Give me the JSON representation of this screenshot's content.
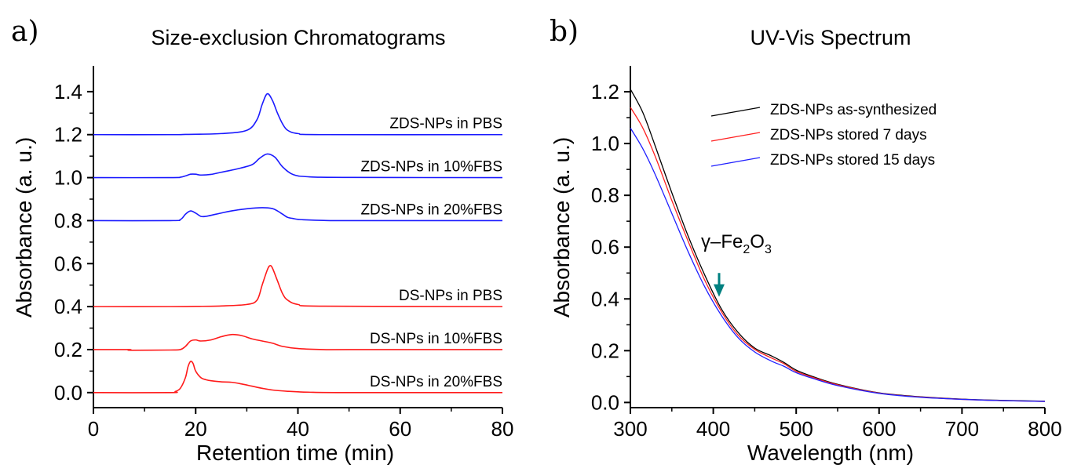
{
  "chart_data": [
    {
      "panel": "a)",
      "type": "line",
      "title": "Size-exclusion Chromatograms",
      "xlabel": "Retention time (min)",
      "ylabel": "Absorbance (a. u.)",
      "xlim": [
        0,
        80
      ],
      "ylim": [
        -0.07,
        1.52
      ],
      "xticks": [
        0,
        20,
        40,
        60,
        80
      ],
      "yticks": [
        0.0,
        0.2,
        0.4,
        0.6,
        0.8,
        1.0,
        1.2,
        1.4
      ],
      "ytick_labels": [
        "0.0",
        "0.2",
        "0.4",
        "0.6",
        "0.8",
        "1.0",
        "1.2",
        "1.4"
      ],
      "series": [
        {
          "name": "ZDS-NPs in PBS",
          "color": "#1a1aff",
          "x": [
            0,
            15,
            18,
            25,
            30,
            32,
            33,
            34,
            35,
            36,
            37,
            38,
            40,
            45,
            80
          ],
          "y": [
            1.2,
            1.2,
            1.201,
            1.205,
            1.22,
            1.27,
            1.34,
            1.39,
            1.36,
            1.3,
            1.25,
            1.22,
            1.205,
            1.2,
            1.2
          ]
        },
        {
          "name": "ZDS-NPs in 10%FBS",
          "color": "#1a1aff",
          "x": [
            0,
            15,
            17,
            18,
            19,
            20,
            21,
            23,
            25,
            28,
            31,
            32.5,
            34,
            35.5,
            37,
            39,
            42,
            50,
            80
          ],
          "y": [
            1.0,
            1.0,
            1.002,
            1.008,
            1.016,
            1.016,
            1.012,
            1.015,
            1.025,
            1.04,
            1.06,
            1.09,
            1.11,
            1.095,
            1.05,
            1.015,
            1.004,
            1.001,
            1.0
          ]
        },
        {
          "name": "ZDS-NPs in 20%FBS",
          "color": "#1a1aff",
          "x": [
            0,
            15,
            17,
            18,
            19,
            20,
            21,
            22,
            24,
            27,
            30,
            33,
            35,
            36,
            37,
            38,
            39,
            40,
            42,
            45,
            50,
            80
          ],
          "y": [
            0.8,
            0.8,
            0.805,
            0.83,
            0.845,
            0.835,
            0.82,
            0.82,
            0.83,
            0.845,
            0.855,
            0.86,
            0.856,
            0.845,
            0.83,
            0.815,
            0.81,
            0.806,
            0.803,
            0.801,
            0.8,
            0.8
          ]
        },
        {
          "name": "DS-NPs in PBS",
          "color": "#ff1a1a",
          "x": [
            0,
            15,
            20,
            25,
            30,
            32,
            33,
            34,
            34.5,
            35,
            36,
            37,
            38,
            40,
            45,
            80
          ],
          "y": [
            0.4,
            0.4,
            0.401,
            0.403,
            0.41,
            0.43,
            0.5,
            0.57,
            0.59,
            0.58,
            0.52,
            0.46,
            0.43,
            0.41,
            0.402,
            0.4
          ]
        },
        {
          "name": "DS-NPs in 10%FBS",
          "color": "#ff1a1a",
          "x": [
            0,
            7,
            7.2,
            15,
            17,
            18,
            19,
            20,
            21,
            23,
            25,
            27,
            29,
            31,
            33,
            35,
            37,
            40,
            45,
            50,
            80
          ],
          "y": [
            0.2,
            0.2,
            0.197,
            0.198,
            0.2,
            0.215,
            0.24,
            0.245,
            0.24,
            0.245,
            0.26,
            0.27,
            0.265,
            0.25,
            0.24,
            0.23,
            0.215,
            0.205,
            0.2,
            0.2,
            0.2
          ]
        },
        {
          "name": "DS-NPs in 20%FBS",
          "color": "#ff1a1a",
          "x": [
            0,
            15,
            16,
            17,
            18,
            18.5,
            19,
            19.5,
            20,
            21,
            22,
            23,
            25,
            27,
            29,
            31,
            33,
            35,
            38,
            42,
            50,
            80
          ],
          "y": [
            0.0,
            0.0,
            0.005,
            0.02,
            0.07,
            0.12,
            0.145,
            0.135,
            0.1,
            0.07,
            0.06,
            0.055,
            0.05,
            0.048,
            0.04,
            0.03,
            0.02,
            0.012,
            0.006,
            0.002,
            0.0,
            0.0
          ]
        }
      ],
      "annotations": [
        {
          "text": "ZDS-NPs in PBS",
          "series": 0
        },
        {
          "text": "ZDS-NPs in 10%FBS",
          "series": 1
        },
        {
          "text": "ZDS-NPs in 20%FBS",
          "series": 2
        },
        {
          "text": "DS-NPs in PBS",
          "series": 3
        },
        {
          "text": "DS-NPs in 10%FBS",
          "series": 4
        },
        {
          "text": "DS-NPs in 20%FBS",
          "series": 5
        }
      ]
    },
    {
      "panel": "b)",
      "type": "line",
      "title": "UV-Vis Spectrum",
      "xlabel": "Wavelength (nm)",
      "ylabel": "Absorbance (a. u.)",
      "xlim": [
        300,
        800
      ],
      "ylim": [
        -0.02,
        1.3
      ],
      "xticks": [
        300,
        400,
        500,
        600,
        700,
        800
      ],
      "yticks": [
        0.0,
        0.2,
        0.4,
        0.6,
        0.8,
        1.0,
        1.2
      ],
      "ytick_labels": [
        "0.0",
        "0.2",
        "0.4",
        "0.6",
        "0.8",
        "1.0",
        "1.2"
      ],
      "legend": "top-right",
      "series": [
        {
          "name": "ZDS-NPs as-synthesized",
          "color": "#000000",
          "x": [
            300,
            315,
            330,
            350,
            370,
            390,
            410,
            430,
            450,
            470,
            485,
            500,
            520,
            550,
            600,
            650,
            700,
            750,
            800
          ],
          "y": [
            1.21,
            1.12,
            0.99,
            0.81,
            0.64,
            0.49,
            0.36,
            0.27,
            0.21,
            0.18,
            0.155,
            0.125,
            0.1,
            0.07,
            0.037,
            0.022,
            0.013,
            0.008,
            0.005
          ]
        },
        {
          "name": "ZDS-NPs stored 7 days",
          "color": "#ff2020",
          "x": [
            300,
            315,
            330,
            350,
            370,
            390,
            410,
            430,
            450,
            470,
            485,
            500,
            520,
            550,
            600,
            650,
            700,
            750,
            800
          ],
          "y": [
            1.14,
            1.06,
            0.95,
            0.78,
            0.62,
            0.47,
            0.35,
            0.26,
            0.205,
            0.172,
            0.15,
            0.12,
            0.097,
            0.068,
            0.036,
            0.021,
            0.012,
            0.007,
            0.004
          ]
        },
        {
          "name": "ZDS-NPs stored 15 days",
          "color": "#2020ff",
          "x": [
            300,
            315,
            330,
            350,
            370,
            390,
            410,
            430,
            450,
            470,
            485,
            500,
            520,
            550,
            600,
            650,
            700,
            750,
            800
          ],
          "y": [
            1.06,
            0.98,
            0.88,
            0.73,
            0.58,
            0.445,
            0.335,
            0.25,
            0.195,
            0.16,
            0.14,
            0.115,
            0.093,
            0.065,
            0.035,
            0.02,
            0.012,
            0.007,
            0.004
          ]
        }
      ],
      "annotation": {
        "text_prefix": "γ–Fe",
        "sub1": "2",
        "mid": "O",
        "sub2": "3",
        "arrow_color": "#008080",
        "arrow_x": 407,
        "arrow_y_from": 0.5,
        "arrow_y_to": 0.42
      }
    }
  ]
}
